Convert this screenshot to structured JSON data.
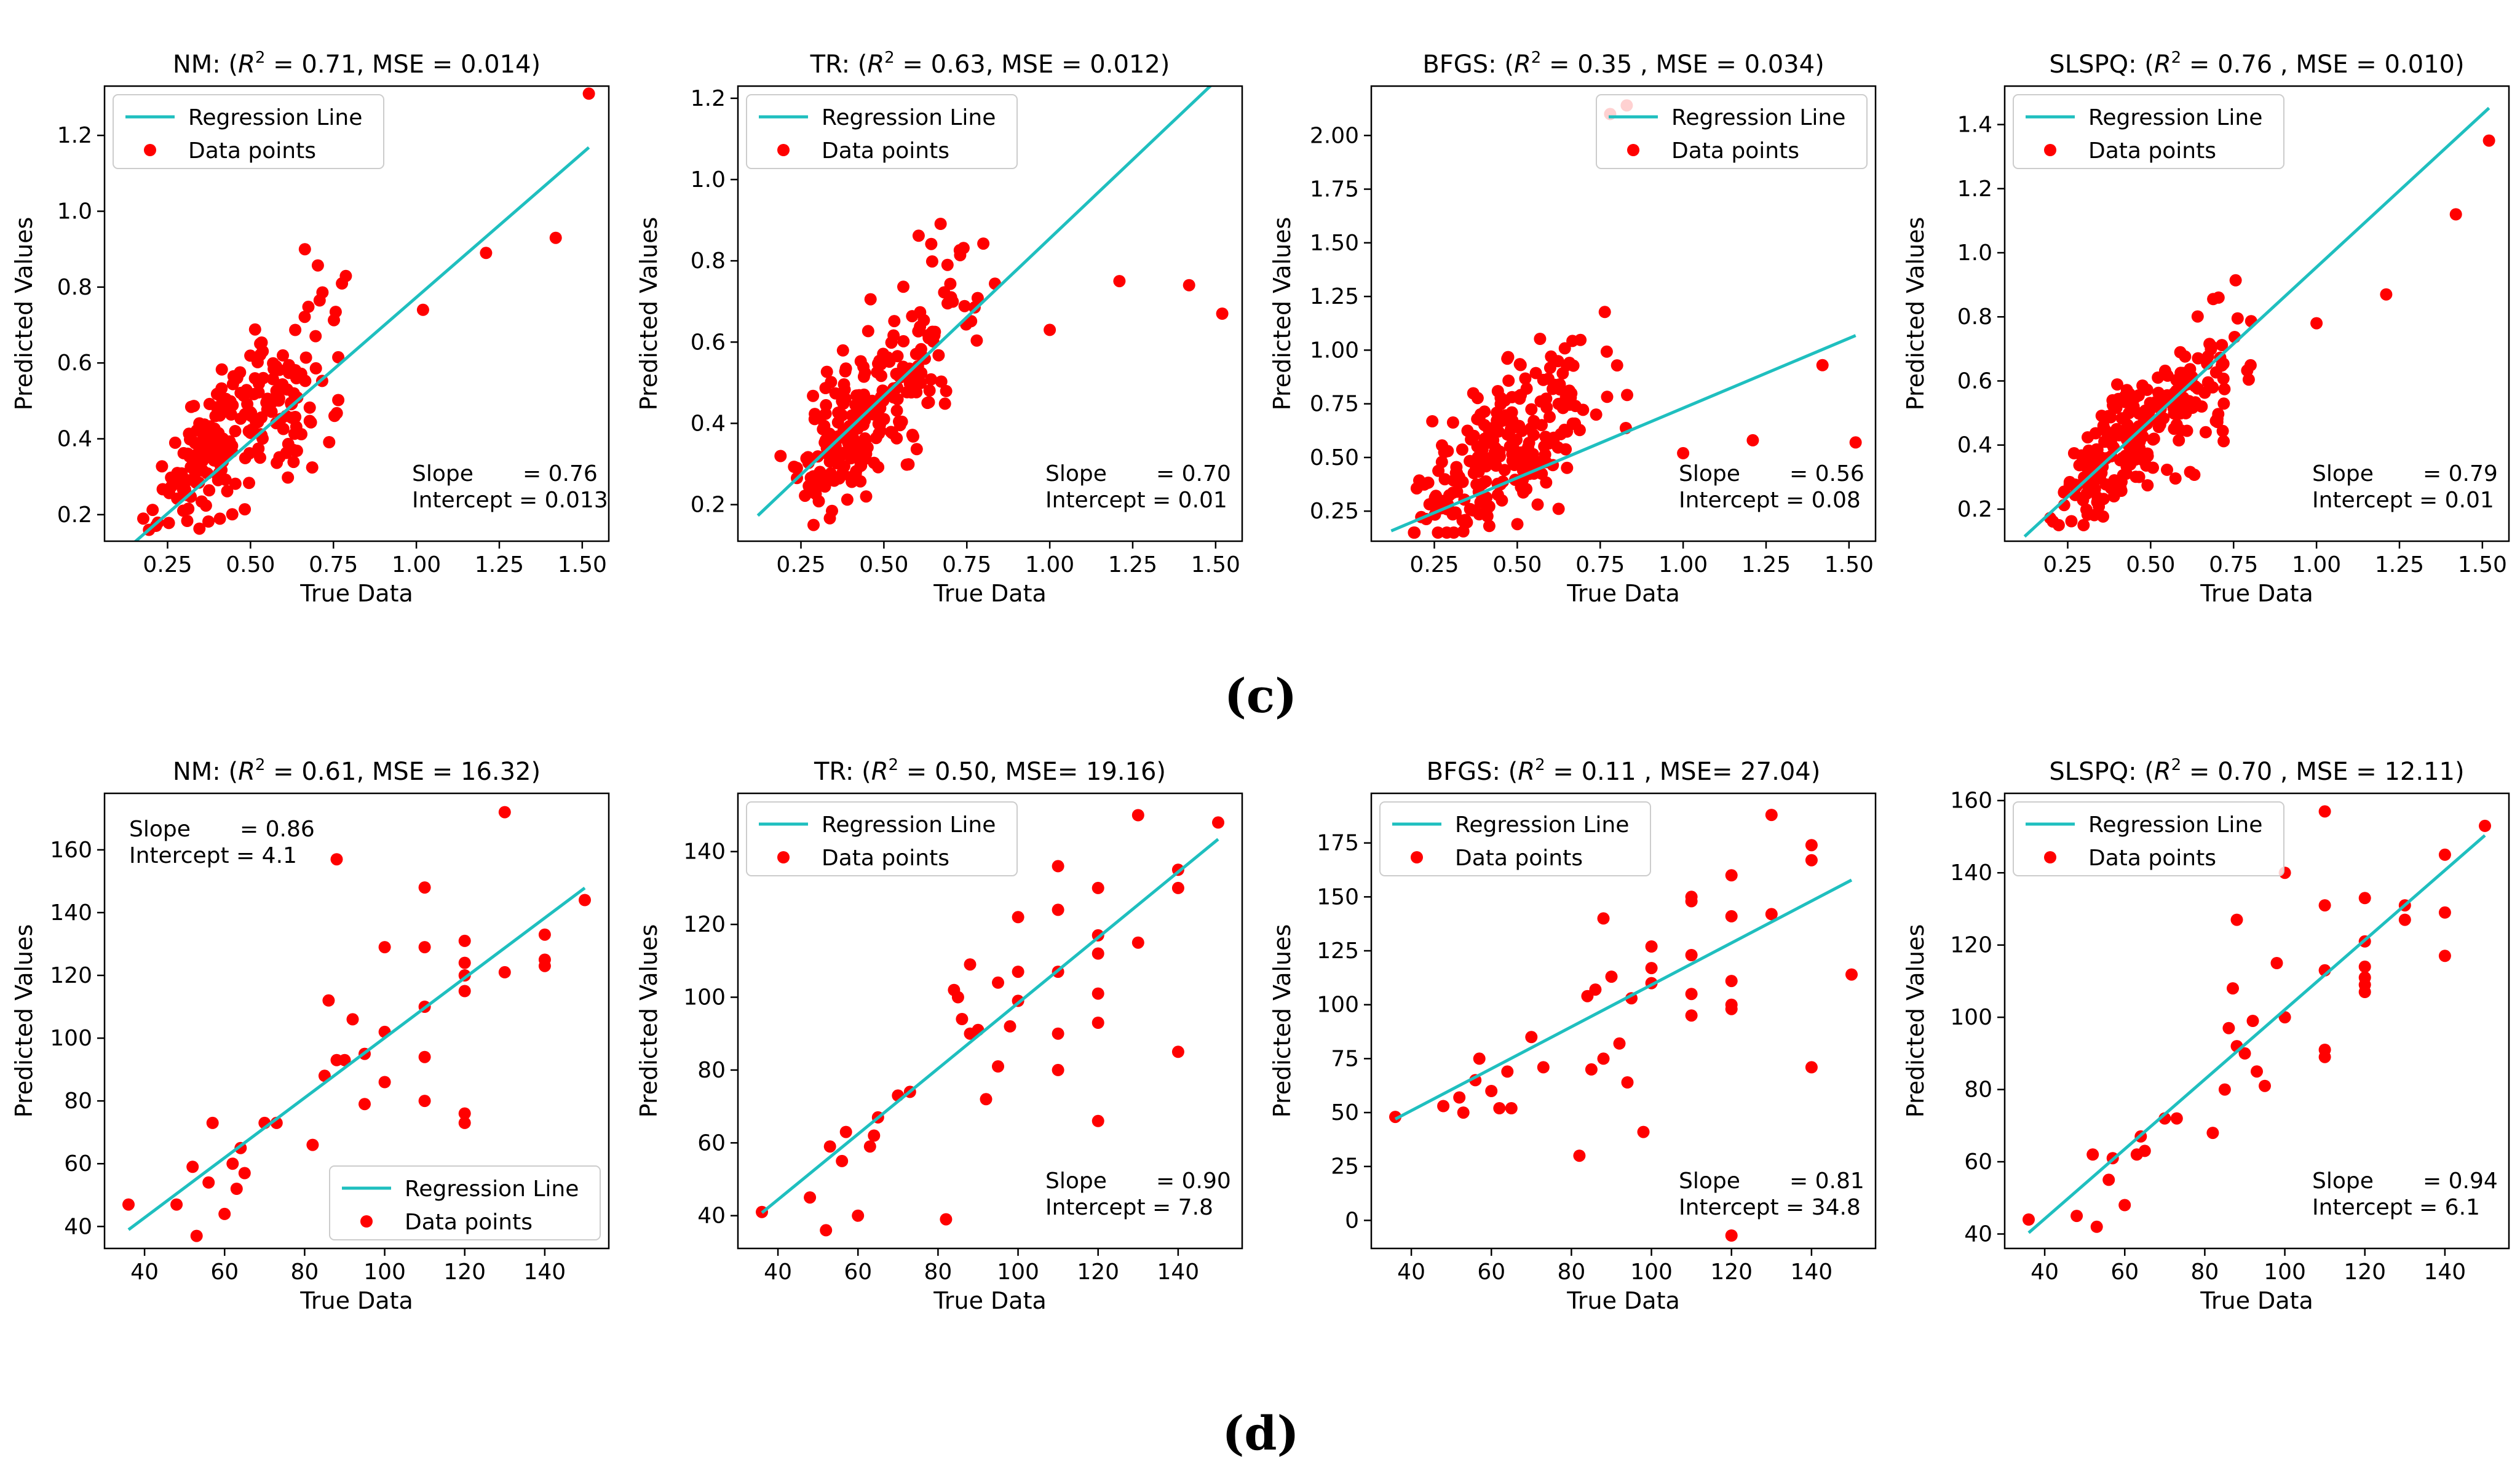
{
  "figure": {
    "caption_c": "(c)",
    "caption_d": "(d)"
  },
  "chart_data": [
    {
      "type": "scatter",
      "title": "NM: ($R^2$ = 0.71, MSE = 0.014)",
      "title_parts": [
        "NM: (",
        "R",
        "2",
        " = 0.71, MSE = 0.014)"
      ],
      "xlabel": "True Data",
      "ylabel": "Predicted Values",
      "xlim": [
        0.06,
        1.58
      ],
      "ylim": [
        0.13,
        1.33
      ],
      "xticks": [
        0.25,
        0.5,
        0.75,
        1.0,
        1.25,
        1.5
      ],
      "xtick_labels": [
        "0.25",
        "0.50",
        "0.75",
        "1.00",
        "1.25",
        "1.50"
      ],
      "yticks": [
        0.2,
        0.4,
        0.6,
        0.8,
        1.0,
        1.2
      ],
      "ytick_labels": [
        "0.2",
        "0.4",
        "0.6",
        "0.8",
        "1.0",
        "1.2"
      ],
      "legend": {
        "entries": [
          "Regression Line",
          "Data points"
        ],
        "loc": "upper-left"
      },
      "stats": {
        "position": "lower-right",
        "lines": [
          "Slope       = 0.76",
          "Intercept = 0.013"
        ]
      },
      "regression": {
        "slope": 0.76,
        "intercept": 0.013,
        "x_range": [
          0.12,
          1.52
        ]
      },
      "series": [
        {
          "name": "Data points",
          "generator": {
            "type": "cloud",
            "seed": 11,
            "n": 240,
            "x_range": [
              0.12,
              0.95
            ],
            "x_peak": 0.45,
            "trend_slope": 0.78,
            "trend_intercept": 0.07,
            "noise": 0.09,
            "y_min": 0.16,
            "y_max": 0.9
          }
        },
        {
          "name": "Data points (outliers)",
          "x": [
            1.02,
            1.21,
            1.42,
            1.52
          ],
          "y": [
            0.74,
            0.89,
            0.93,
            1.31
          ]
        }
      ]
    },
    {
      "type": "scatter",
      "title": "TR: ($R^2$ = 0.63, MSE = 0.012)",
      "title_parts": [
        "TR: (",
        "R",
        "2",
        " = 0.63, MSE = 0.012)"
      ],
      "xlabel": "True Data",
      "ylabel": "Predicted Values",
      "xlim": [
        0.06,
        1.58
      ],
      "ylim": [
        0.11,
        1.23
      ],
      "xticks": [
        0.25,
        0.5,
        0.75,
        1.0,
        1.25,
        1.5
      ],
      "xtick_labels": [
        "0.25",
        "0.50",
        "0.75",
        "1.00",
        "1.25",
        "1.50"
      ],
      "yticks": [
        0.2,
        0.4,
        0.6,
        0.8,
        1.0,
        1.2
      ],
      "ytick_labels": [
        "0.2",
        "0.4",
        "0.6",
        "0.8",
        "1.0",
        "1.2"
      ],
      "legend": {
        "entries": [
          "Regression Line",
          "Data points"
        ],
        "loc": "upper-left"
      },
      "stats": {
        "position": "lower-right",
        "lines": [
          "Slope       = 0.70",
          "Intercept = 0.01"
        ]
      },
      "regression": {
        "slope": 0.7,
        "intercept": 0.01,
        "x_range": [
          0.12,
          1.52
        ],
        "drawn_slope": 0.775,
        "drawn_intercept": 0.08
      },
      "series": [
        {
          "name": "Data points",
          "generator": {
            "type": "cloud",
            "seed": 23,
            "n": 240,
            "x_range": [
              0.12,
              0.95
            ],
            "x_peak": 0.45,
            "trend_slope": 0.82,
            "trend_intercept": 0.07,
            "noise": 0.085,
            "y_min": 0.15,
            "y_max": 0.9
          }
        },
        {
          "name": "Data points (outliers)",
          "x": [
            1.0,
            1.21,
            1.42,
            1.52
          ],
          "y": [
            0.63,
            0.75,
            0.74,
            0.67
          ]
        }
      ]
    },
    {
      "type": "scatter",
      "title": "BFGS: ($R^2$ = 0.35 , MSE = 0.034)",
      "title_parts": [
        "BFGS: (",
        "R",
        "2",
        " = 0.35 , MSE = 0.034)"
      ],
      "xlabel": "True Data",
      "ylabel": "Predicted Values",
      "xlim": [
        0.06,
        1.58
      ],
      "ylim": [
        0.11,
        2.23
      ],
      "xticks": [
        0.25,
        0.5,
        0.75,
        1.0,
        1.25,
        1.5
      ],
      "xtick_labels": [
        "0.25",
        "0.50",
        "0.75",
        "1.00",
        "1.25",
        "1.50"
      ],
      "yticks": [
        0.25,
        0.5,
        0.75,
        1.0,
        1.25,
        1.5,
        1.75,
        2.0
      ],
      "ytick_labels": [
        "0.25",
        "0.50",
        "0.75",
        "1.00",
        "1.25",
        "1.50",
        "1.75",
        "2.00"
      ],
      "legend": {
        "entries": [
          "Regression Line",
          "Data points"
        ],
        "loc": "upper-right"
      },
      "stats": {
        "position": "lower-right",
        "lines": [
          "Slope       = 0.56",
          "Intercept = 0.08"
        ]
      },
      "regression": {
        "slope": 0.56,
        "intercept": 0.08,
        "x_range": [
          0.12,
          1.52
        ],
        "drawn_slope": 0.65,
        "drawn_intercept": 0.08
      },
      "series": [
        {
          "name": "Data points",
          "generator": {
            "type": "cloud",
            "seed": 37,
            "n": 240,
            "x_range": [
              0.12,
              0.9
            ],
            "x_peak": 0.45,
            "trend_slope": 1.05,
            "trend_intercept": 0.05,
            "noise": 0.17,
            "y_min": 0.15,
            "y_max": 1.28
          }
        },
        {
          "name": "Data points (outliers)",
          "x": [
            0.78,
            0.83,
            1.0,
            1.21,
            1.42,
            1.52
          ],
          "y": [
            2.1,
            2.14,
            0.52,
            0.58,
            0.93,
            0.57
          ]
        }
      ]
    },
    {
      "type": "scatter",
      "title": "SLSPQ: ($R^2$ = 0.76 , MSE = 0.010)",
      "title_parts": [
        "SLSPQ: (",
        "R",
        "2",
        " = 0.76 , MSE = 0.010)"
      ],
      "xlabel": "True Data",
      "ylabel": "Predicted Values",
      "xlim": [
        0.06,
        1.58
      ],
      "ylim": [
        0.1,
        1.52
      ],
      "xticks": [
        0.25,
        0.5,
        0.75,
        1.0,
        1.25,
        1.5
      ],
      "xtick_labels": [
        "0.25",
        "0.50",
        "0.75",
        "1.00",
        "1.25",
        "1.50"
      ],
      "yticks": [
        0.2,
        0.4,
        0.6,
        0.8,
        1.0,
        1.2,
        1.4
      ],
      "ytick_labels": [
        "0.2",
        "0.4",
        "0.6",
        "0.8",
        "1.0",
        "1.2",
        "1.4"
      ],
      "legend": {
        "entries": [
          "Regression Line",
          "Data points"
        ],
        "loc": "upper-left"
      },
      "stats": {
        "position": "lower-right",
        "lines": [
          "Slope       = 0.79",
          "Intercept = 0.01"
        ]
      },
      "regression": {
        "slope": 0.79,
        "intercept": 0.01,
        "x_range": [
          0.12,
          1.52
        ],
        "drawn_slope": 0.955,
        "drawn_intercept": 0.0
      },
      "series": [
        {
          "name": "Data points",
          "generator": {
            "type": "cloud",
            "seed": 53,
            "n": 240,
            "x_range": [
              0.12,
              0.95
            ],
            "x_peak": 0.45,
            "trend_slope": 0.82,
            "trend_intercept": 0.06,
            "noise": 0.085,
            "y_min": 0.15,
            "y_max": 0.94
          }
        },
        {
          "name": "Data points (outliers)",
          "x": [
            1.0,
            1.21,
            1.42,
            1.52
          ],
          "y": [
            0.78,
            0.87,
            1.12,
            1.35
          ]
        }
      ]
    },
    {
      "type": "scatter",
      "title": "NM: ($R^2$ = 0.61, MSE = 16.32)",
      "title_parts": [
        "NM: (",
        "R",
        "2",
        " = 0.61, MSE = 16.32)"
      ],
      "xlabel": "True Data",
      "ylabel": "Predicted Values",
      "xlim": [
        30,
        156
      ],
      "ylim": [
        33,
        178
      ],
      "xticks": [
        40,
        60,
        80,
        100,
        120,
        140
      ],
      "xtick_labels": [
        "40",
        "60",
        "80",
        "100",
        "120",
        "140"
      ],
      "yticks": [
        40,
        60,
        80,
        100,
        120,
        140,
        160
      ],
      "ytick_labels": [
        "40",
        "60",
        "80",
        "100",
        "120",
        "140",
        "160"
      ],
      "legend": {
        "entries": [
          "Regression Line",
          "Data points"
        ],
        "loc": "lower-right"
      },
      "stats": {
        "position": "upper-left",
        "lines": [
          "Slope       = 0.86",
          "Intercept = 4.1"
        ]
      },
      "regression": {
        "slope": 0.86,
        "intercept": 4.1,
        "x_range": [
          36,
          150
        ],
        "drawn_slope": 0.955,
        "drawn_intercept": 4.6
      },
      "series": [
        {
          "name": "Data points",
          "x": [
            36,
            48,
            52,
            53,
            56,
            57,
            60,
            62,
            63,
            64,
            65,
            70,
            73,
            82,
            85,
            86,
            88,
            88,
            90,
            92,
            95,
            95,
            100,
            100,
            100,
            110,
            110,
            110,
            110,
            110,
            120,
            120,
            120,
            120,
            120,
            120,
            130,
            130,
            140,
            140,
            140,
            150
          ],
          "y": [
            47,
            47,
            59,
            37,
            54,
            73,
            44,
            60,
            52,
            65,
            57,
            73,
            73,
            66,
            88,
            112,
            93,
            157,
            93,
            106,
            79,
            95,
            102,
            86,
            129,
            110,
            94,
            129,
            148,
            80,
            131,
            124,
            120,
            115,
            76,
            73,
            172,
            121,
            133,
            125,
            123,
            144
          ]
        }
      ]
    },
    {
      "type": "scatter",
      "title": "TR: ($R^2$ = 0.50, MSE= 19.16)",
      "title_parts": [
        "TR: (",
        "R",
        "2",
        " = 0.50, MSE= 19.16)"
      ],
      "xlabel": "True Data",
      "ylabel": "Predicted Values",
      "xlim": [
        30,
        156
      ],
      "ylim": [
        31,
        156
      ],
      "xticks": [
        40,
        60,
        80,
        100,
        120,
        140
      ],
      "xtick_labels": [
        "40",
        "60",
        "80",
        "100",
        "120",
        "140"
      ],
      "yticks": [
        40,
        60,
        80,
        100,
        120,
        140
      ],
      "ytick_labels": [
        "40",
        "60",
        "80",
        "100",
        "120",
        "140"
      ],
      "legend": {
        "entries": [
          "Regression Line",
          "Data points"
        ],
        "loc": "upper-left"
      },
      "stats": {
        "position": "lower-right",
        "lines": [
          "Slope       = 0.90",
          "Intercept = 7.8"
        ]
      },
      "regression": {
        "slope": 0.9,
        "intercept": 7.8,
        "x_range": [
          36,
          150
        ],
        "drawn_slope": 0.9,
        "drawn_intercept": 8.4
      },
      "series": [
        {
          "name": "Data points",
          "x": [
            36,
            48,
            52,
            53,
            56,
            57,
            60,
            63,
            64,
            65,
            70,
            73,
            82,
            84,
            85,
            86,
            88,
            88,
            90,
            92,
            95,
            95,
            98,
            100,
            100,
            100,
            110,
            110,
            110,
            110,
            110,
            120,
            120,
            120,
            120,
            120,
            120,
            130,
            130,
            140,
            140,
            140,
            150
          ],
          "y": [
            41,
            45,
            36,
            59,
            55,
            63,
            40,
            59,
            62,
            67,
            73,
            74,
            39,
            102,
            100,
            94,
            90,
            109,
            91,
            72,
            81,
            104,
            92,
            99,
            107,
            122,
            80,
            90,
            107,
            124,
            136,
            130,
            117,
            112,
            101,
            93,
            66,
            150,
            115,
            85,
            130,
            135,
            148
          ]
        }
      ]
    },
    {
      "type": "scatter",
      "title": "BFGS: ($R^2$ = 0.11 , MSE= 27.04)",
      "title_parts": [
        "BFGS: (",
        "R",
        "2",
        " = 0.11 , MSE= 27.04)"
      ],
      "xlabel": "True Data",
      "ylabel": "Predicted Values",
      "xlim": [
        30,
        156
      ],
      "ylim": [
        -13,
        198
      ],
      "xticks": [
        40,
        60,
        80,
        100,
        120,
        140
      ],
      "xtick_labels": [
        "40",
        "60",
        "80",
        "100",
        "120",
        "140"
      ],
      "yticks": [
        0,
        25,
        50,
        75,
        100,
        125,
        150,
        175
      ],
      "ytick_labels": [
        "0",
        "25",
        "50",
        "75",
        "100",
        "125",
        "150",
        "175"
      ],
      "legend": {
        "entries": [
          "Regression Line",
          "Data points"
        ],
        "loc": "upper-left"
      },
      "stats": {
        "position": "lower-right",
        "lines": [
          "Slope       = 0.81",
          "Intercept = 34.8"
        ]
      },
      "regression": {
        "slope": 0.81,
        "intercept": 34.8,
        "x_range": [
          36,
          150
        ],
        "drawn_slope": 0.972,
        "drawn_intercept": 12.0
      },
      "series": [
        {
          "name": "Data points",
          "x": [
            36,
            48,
            52,
            53,
            56,
            57,
            60,
            62,
            64,
            65,
            70,
            73,
            82,
            84,
            85,
            86,
            88,
            88,
            90,
            92,
            94,
            95,
            98,
            100,
            100,
            100,
            110,
            110,
            110,
            110,
            110,
            120,
            120,
            120,
            120,
            120,
            120,
            130,
            130,
            140,
            140,
            140,
            150
          ],
          "y": [
            48,
            53,
            57,
            50,
            65,
            75,
            60,
            52,
            69,
            52,
            85,
            71,
            30,
            104,
            70,
            107,
            140,
            75,
            113,
            82,
            64,
            103,
            41,
            110,
            117,
            127,
            95,
            105,
            123,
            148,
            150,
            160,
            141,
            111,
            100,
            98,
            -7,
            188,
            142,
            71,
            167,
            174,
            114
          ]
        }
      ]
    },
    {
      "type": "scatter",
      "title": "SLSPQ: ($R^2$ = 0.70 , MSE = 12.11)",
      "title_parts": [
        "SLSPQ: (",
        "R",
        "2",
        " = 0.70 , MSE = 12.11)"
      ],
      "xlabel": "True Data",
      "ylabel": "Predicted Values",
      "xlim": [
        30,
        156
      ],
      "ylim": [
        36,
        162
      ],
      "xticks": [
        40,
        60,
        80,
        100,
        120,
        140
      ],
      "xtick_labels": [
        "40",
        "60",
        "80",
        "100",
        "120",
        "140"
      ],
      "yticks": [
        40,
        60,
        80,
        100,
        120,
        140,
        160
      ],
      "ytick_labels": [
        "40",
        "60",
        "80",
        "100",
        "120",
        "140",
        "160"
      ],
      "legend": {
        "entries": [
          "Regression Line",
          "Data points"
        ],
        "loc": "upper-left"
      },
      "stats": {
        "position": "lower-right",
        "lines": [
          "Slope       = 0.94",
          "Intercept = 6.1"
        ]
      },
      "regression": {
        "slope": 0.94,
        "intercept": 6.1,
        "x_range": [
          36,
          150
        ],
        "drawn_slope": 0.965,
        "drawn_intercept": 5.6
      },
      "series": [
        {
          "name": "Data points",
          "x": [
            36,
            48,
            52,
            53,
            56,
            57,
            60,
            63,
            64,
            65,
            70,
            73,
            82,
            85,
            86,
            87,
            88,
            88,
            90,
            92,
            93,
            95,
            98,
            100,
            100,
            110,
            110,
            110,
            110,
            110,
            120,
            120,
            120,
            120,
            120,
            120,
            130,
            130,
            140,
            140,
            140,
            150
          ],
          "y": [
            44,
            45,
            62,
            42,
            55,
            61,
            48,
            62,
            67,
            63,
            72,
            72,
            68,
            80,
            97,
            108,
            92,
            127,
            90,
            99,
            85,
            81,
            115,
            100,
            140,
            91,
            89,
            113,
            131,
            157,
            133,
            121,
            114,
            111,
            109,
            107,
            131,
            127,
            117,
            129,
            145,
            153
          ]
        }
      ]
    }
  ]
}
